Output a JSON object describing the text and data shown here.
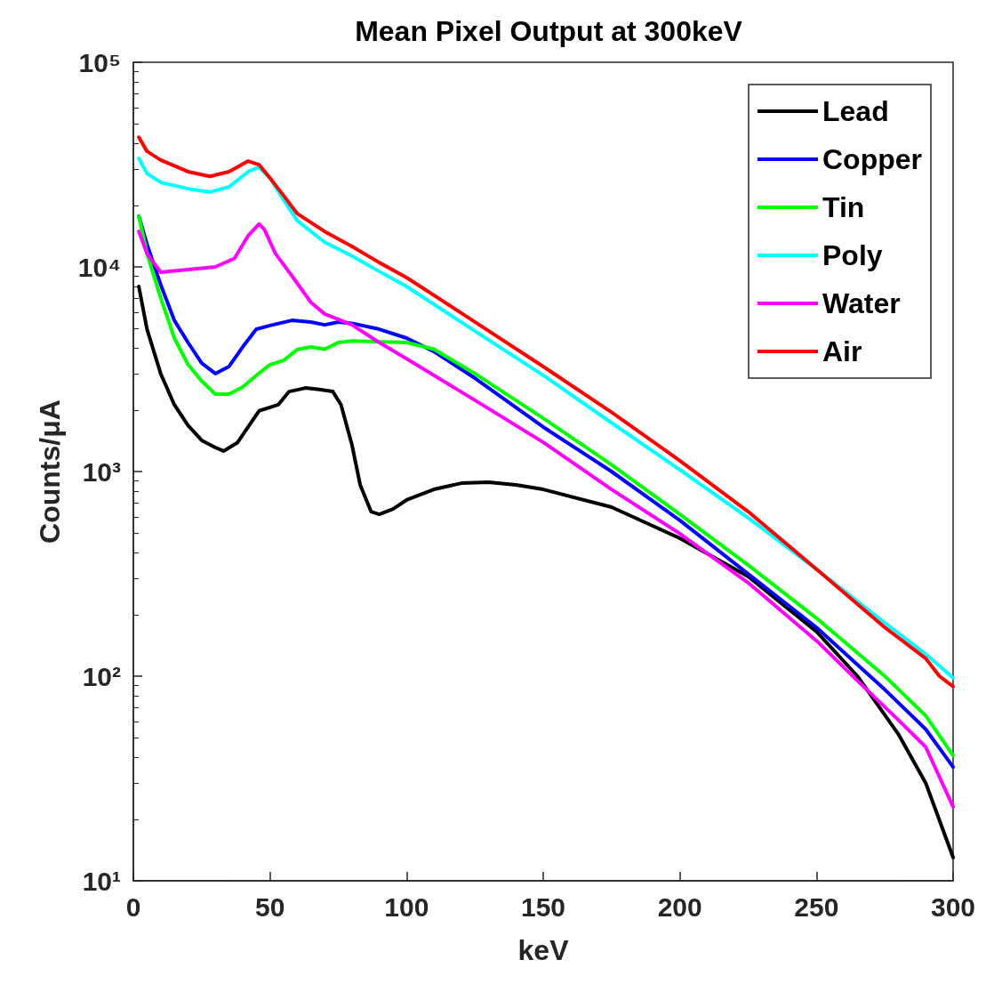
{
  "chart_data": {
    "type": "line",
    "title": "Mean Pixel Output at 300keV",
    "xlabel": "keV",
    "ylabel": "Counts/μA",
    "log": "y",
    "grid": false,
    "legend": "top right",
    "marker": "none",
    "line_style": "solid",
    "xlim": [
      0,
      300
    ],
    "xticks": [
      0,
      50,
      100,
      150,
      200,
      250,
      300
    ],
    "ylim": [
      10,
      100000
    ],
    "yticks": [
      {
        "value": 10,
        "label": "10¹"
      },
      {
        "value": 100,
        "label": "10²"
      },
      {
        "value": 1000,
        "label": "10³"
      },
      {
        "value": 10000,
        "label": "10⁴"
      },
      {
        "value": 100000,
        "label": "10⁵"
      }
    ],
    "series": [
      {
        "name": "Lead",
        "color": "#000000",
        "x": [
          2,
          5,
          10,
          15,
          20,
          25,
          30,
          33,
          38,
          42,
          46,
          50,
          53,
          57,
          63,
          68,
          73,
          76,
          80,
          83,
          87,
          90,
          95,
          100,
          110,
          120,
          130,
          140,
          150,
          175,
          200,
          225,
          250,
          265,
          280,
          290,
          300
        ],
        "values": [
          8020,
          4960,
          3010,
          2120,
          1680,
          1420,
          1310,
          1260,
          1380,
          1650,
          1980,
          2060,
          2120,
          2460,
          2560,
          2520,
          2460,
          2120,
          1350,
          861,
          637,
          618,
          656,
          726,
          818,
          877,
          887,
          861,
          818,
          670,
          472,
          307,
          165,
          100,
          52,
          30,
          13
        ]
      },
      {
        "name": "Copper",
        "color": "#0000ff",
        "x": [
          2,
          5,
          10,
          15,
          20,
          25,
          30,
          35,
          40,
          45,
          50,
          58,
          65,
          70,
          75,
          80,
          90,
          100,
          110,
          125,
          150,
          175,
          200,
          225,
          250,
          275,
          290,
          300
        ],
        "values": [
          17700,
          12900,
          8190,
          5480,
          4270,
          3390,
          3010,
          3260,
          4060,
          4960,
          5170,
          5480,
          5380,
          5210,
          5380,
          5300,
          4960,
          4490,
          3860,
          2860,
          1650,
          1000,
          577,
          316,
          173,
          86,
          55,
          36
        ]
      },
      {
        "name": "Tin",
        "color": "#00ff00",
        "x": [
          2,
          5,
          10,
          15,
          20,
          25,
          30,
          35,
          40,
          45,
          50,
          55,
          60,
          65,
          70,
          75,
          80,
          100,
          110,
          125,
          150,
          175,
          200,
          225,
          250,
          275,
          290,
          300
        ],
        "values": [
          17700,
          11600,
          7050,
          4490,
          3330,
          2770,
          2390,
          2390,
          2590,
          2950,
          3330,
          3490,
          3950,
          4060,
          3960,
          4270,
          4350,
          4270,
          3960,
          3010,
          1820,
          1080,
          618,
          349,
          192,
          100,
          64,
          41
        ]
      },
      {
        "name": "Poly",
        "color": "#00ffff",
        "x": [
          2,
          5,
          10,
          20,
          28,
          35,
          42,
          46,
          50,
          55,
          60,
          70,
          80,
          90,
          100,
          125,
          150,
          175,
          200,
          225,
          250,
          275,
          290,
          300
        ],
        "values": [
          33900,
          28600,
          25900,
          24100,
          23200,
          24600,
          29200,
          30700,
          27200,
          21200,
          16800,
          13200,
          11300,
          9500,
          8020,
          4860,
          2950,
          1730,
          1020,
          594,
          333,
          182,
          128,
          98
        ]
      },
      {
        "name": "Water",
        "color": "#ff00ff",
        "x": [
          2,
          5,
          10,
          20,
          30,
          37,
          42,
          46,
          48,
          52,
          58,
          65,
          70,
          80,
          90,
          100,
          125,
          150,
          175,
          200,
          225,
          250,
          265,
          280,
          290,
          300
        ],
        "values": [
          14900,
          11600,
          9420,
          9700,
          10000,
          11000,
          14200,
          16200,
          15200,
          11600,
          9050,
          6700,
          5890,
          5210,
          4270,
          3560,
          2230,
          1390,
          818,
          497,
          286,
          149,
          95,
          61,
          45,
          23
        ]
      },
      {
        "name": "Air",
        "color": "#ff0000",
        "x": [
          2,
          5,
          10,
          20,
          28,
          35,
          42,
          46,
          50,
          55,
          60,
          70,
          80,
          90,
          100,
          125,
          150,
          175,
          200,
          225,
          250,
          275,
          290,
          295,
          300
        ],
        "values": [
          43000,
          36700,
          33300,
          29200,
          27700,
          29200,
          32900,
          31600,
          27200,
          22300,
          18200,
          14900,
          12600,
          10500,
          8870,
          5380,
          3260,
          1950,
          1130,
          637,
          333,
          173,
          122,
          100,
          89
        ]
      }
    ]
  }
}
